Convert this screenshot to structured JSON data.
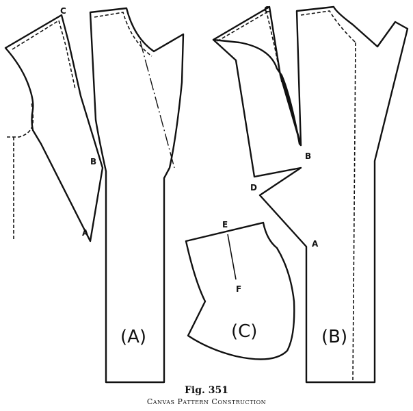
{
  "labels": {
    "c_left": "C",
    "b_left": "B",
    "a_left": "A",
    "c_right": "C",
    "b_right": "B",
    "d_right": "D",
    "a_right": "A",
    "e": "E",
    "f": "F",
    "piece_a": "(A)",
    "piece_b": "(B)",
    "piece_c": "(C)"
  },
  "caption": {
    "number": "Fig. 351",
    "title": "Canvas Pattern Construction"
  }
}
